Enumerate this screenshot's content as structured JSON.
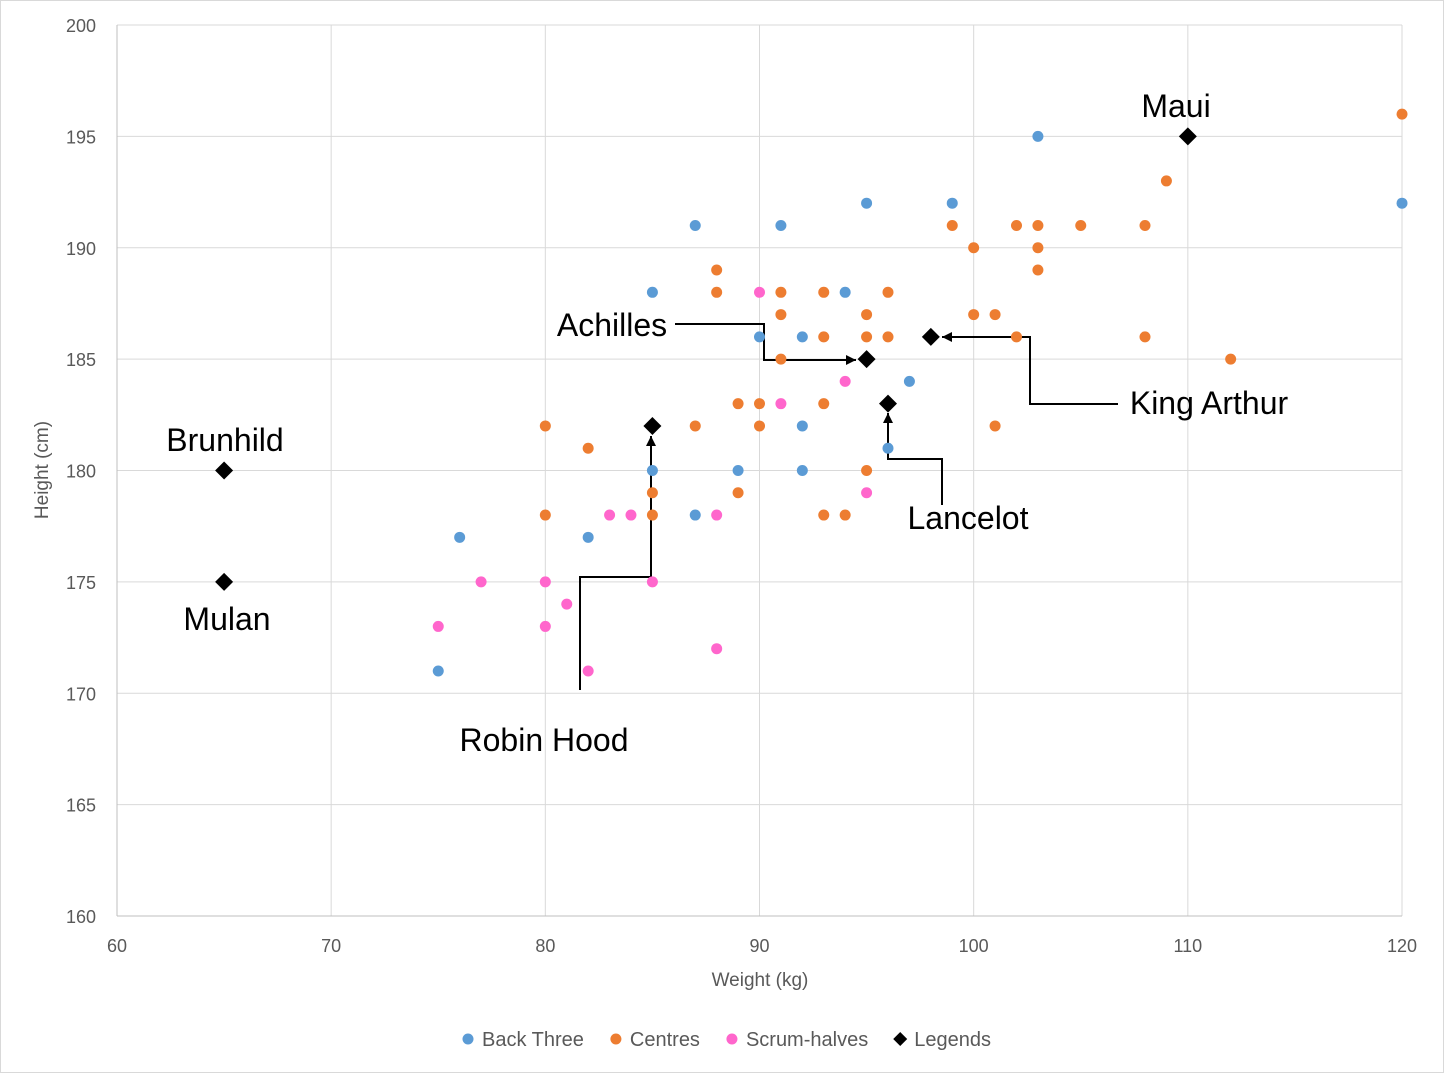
{
  "chart_data": {
    "type": "scatter",
    "title": "",
    "xlabel": "Weight (kg)",
    "ylabel": "Height (cm)",
    "xlim": [
      60,
      120
    ],
    "ylim": [
      160,
      200
    ],
    "xticks": [
      60,
      70,
      80,
      90,
      100,
      110,
      120
    ],
    "yticks": [
      160,
      165,
      170,
      175,
      180,
      185,
      190,
      195,
      200
    ],
    "grid": true,
    "legend_position": "bottom",
    "series": [
      {
        "name": "Back Three",
        "color": "#5b9bd5",
        "marker": "circle",
        "points": [
          [
            75,
            171
          ],
          [
            76,
            177
          ],
          [
            82,
            177
          ],
          [
            85,
            188
          ],
          [
            85,
            180
          ],
          [
            87,
            191
          ],
          [
            87,
            178
          ],
          [
            89,
            180
          ],
          [
            90,
            186
          ],
          [
            91,
            191
          ],
          [
            92,
            186
          ],
          [
            92,
            182
          ],
          [
            92,
            180
          ],
          [
            94,
            188
          ],
          [
            95,
            192
          ],
          [
            96,
            181
          ],
          [
            97,
            184
          ],
          [
            99,
            192
          ],
          [
            103,
            195
          ],
          [
            120,
            192
          ]
        ]
      },
      {
        "name": "Centres",
        "color": "#ed7d31",
        "marker": "circle",
        "points": [
          [
            80,
            182
          ],
          [
            80,
            178
          ],
          [
            82,
            181
          ],
          [
            85,
            179
          ],
          [
            85,
            178
          ],
          [
            87,
            182
          ],
          [
            88,
            189
          ],
          [
            88,
            188
          ],
          [
            89,
            183
          ],
          [
            89,
            179
          ],
          [
            90,
            183
          ],
          [
            90,
            182
          ],
          [
            91,
            188
          ],
          [
            91,
            187
          ],
          [
            91,
            185
          ],
          [
            93,
            188
          ],
          [
            93,
            186
          ],
          [
            93,
            183
          ],
          [
            93,
            178
          ],
          [
            94,
            178
          ],
          [
            95,
            187
          ],
          [
            95,
            186
          ],
          [
            95,
            180
          ],
          [
            96,
            188
          ],
          [
            96,
            186
          ],
          [
            99,
            191
          ],
          [
            100,
            190
          ],
          [
            100,
            187
          ],
          [
            101,
            187
          ],
          [
            101,
            182
          ],
          [
            102,
            191
          ],
          [
            102,
            186
          ],
          [
            103,
            191
          ],
          [
            103,
            190
          ],
          [
            103,
            189
          ],
          [
            105,
            191
          ],
          [
            108,
            191
          ],
          [
            108,
            186
          ],
          [
            109,
            193
          ],
          [
            112,
            185
          ],
          [
            120,
            196
          ]
        ]
      },
      {
        "name": "Scrum-halves",
        "color": "#ff66cc",
        "marker": "circle",
        "points": [
          [
            75,
            173
          ],
          [
            77,
            175
          ],
          [
            80,
            175
          ],
          [
            80,
            173
          ],
          [
            81,
            174
          ],
          [
            82,
            171
          ],
          [
            83,
            178
          ],
          [
            84,
            178
          ],
          [
            85,
            175
          ],
          [
            88,
            178
          ],
          [
            88,
            172
          ],
          [
            90,
            188
          ],
          [
            91,
            183
          ],
          [
            94,
            184
          ],
          [
            95,
            179
          ]
        ]
      },
      {
        "name": "Legends",
        "color": "#000000",
        "marker": "diamond",
        "points": [
          [
            65,
            180
          ],
          [
            65,
            175
          ],
          [
            85,
            182
          ],
          [
            95,
            185
          ],
          [
            96,
            183
          ],
          [
            98,
            186
          ],
          [
            110,
            195
          ]
        ]
      }
    ],
    "annotations": [
      {
        "label": "Maui",
        "x": 110,
        "y": 195
      },
      {
        "label": "Brunhild",
        "x": 65,
        "y": 180
      },
      {
        "label": "Mulan",
        "x": 65,
        "y": 175
      },
      {
        "label": "Achilles",
        "x": 95,
        "y": 185
      },
      {
        "label": "King Arthur",
        "x": 98,
        "y": 186
      },
      {
        "label": "Lancelot",
        "x": 96,
        "y": 183
      },
      {
        "label": "Robin Hood",
        "x": 85,
        "y": 182
      }
    ]
  }
}
